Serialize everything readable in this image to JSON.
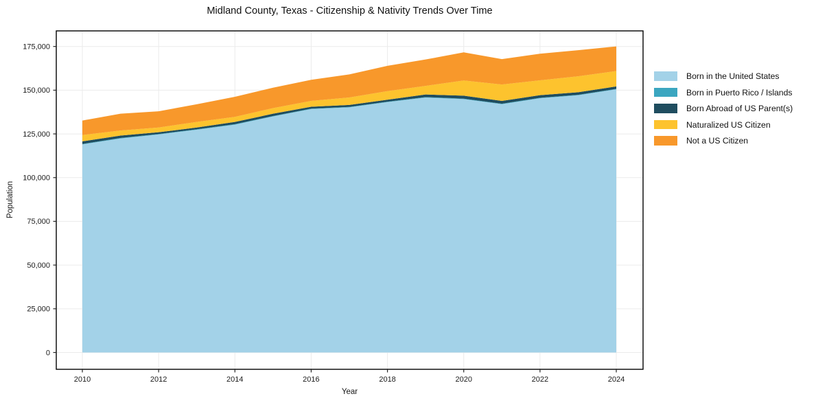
{
  "chart_data": {
    "type": "area",
    "stacked": true,
    "title": "Midland County, Texas - Citizenship & Nativity Trends Over Time",
    "xlabel": "Year",
    "ylabel": "Population",
    "grid": true,
    "legend_position": "right-outside",
    "background_color": "#ffffff",
    "x": [
      2010,
      2011,
      2012,
      2013,
      2014,
      2015,
      2016,
      2017,
      2018,
      2019,
      2020,
      2021,
      2022,
      2023,
      2024
    ],
    "series": [
      {
        "name": "Born in the United States",
        "color": "#a3d2e8",
        "values": [
          119000,
          122400,
          124700,
          127400,
          130300,
          135000,
          139200,
          140200,
          143200,
          145800,
          144900,
          142000,
          145400,
          147100,
          150500
        ]
      },
      {
        "name": "Born in Puerto Rico / Islands",
        "color": "#3ba6c0",
        "values": [
          250,
          250,
          250,
          250,
          250,
          250,
          250,
          250,
          250,
          250,
          250,
          250,
          250,
          250,
          250
        ]
      },
      {
        "name": "Born Abroad of US Parent(s)",
        "color": "#1f4d5f",
        "values": [
          1500,
          1400,
          1000,
          1000,
          1300,
          1300,
          1100,
          1100,
          1100,
          1500,
          1700,
          1600,
          1500,
          1500,
          1400
        ]
      },
      {
        "name": "Naturalized US Citizen",
        "color": "#fdc32e",
        "values": [
          3600,
          2900,
          2700,
          3200,
          2900,
          3200,
          3300,
          4300,
          4900,
          4900,
          8700,
          9400,
          8500,
          9100,
          8800
        ]
      },
      {
        "name": "Not a US Citizen",
        "color": "#f8982b",
        "values": [
          8300,
          9600,
          9300,
          10100,
          11500,
          11700,
          12100,
          13200,
          14500,
          15100,
          16100,
          14500,
          15200,
          14900,
          14100
        ]
      }
    ],
    "totals": [
      132650,
      136550,
      137950,
      141950,
      146250,
      151450,
      155950,
      159050,
      163950,
      167550,
      171650,
      167750,
      170850,
      172850,
      175050
    ],
    "x_ticks": [
      2010,
      2012,
      2014,
      2016,
      2018,
      2020,
      2022,
      2024
    ],
    "y_ticks": [
      0,
      25000,
      50000,
      75000,
      100000,
      125000,
      150000,
      175000
    ],
    "y_tick_labels": [
      "0",
      "25,000",
      "50,000",
      "75,000",
      "100,000",
      "125,000",
      "150,000",
      "175,000"
    ],
    "ylim": [
      0,
      175000
    ],
    "axis_color": "#000000",
    "grid_color": "#ebebeb",
    "tick_label_color": "#1b1b1b"
  }
}
